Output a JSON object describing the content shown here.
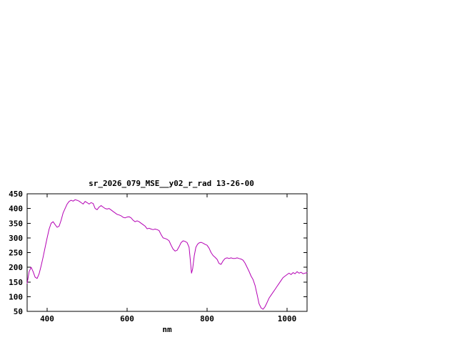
{
  "window": {
    "background": "#ffffff"
  },
  "chart_data": {
    "type": "line",
    "title": "sr_2026_079_MSE__y02_r_rad 13-26-00",
    "xlabel": "nm",
    "ylabel": "",
    "xlim": [
      350,
      1050
    ],
    "ylim": [
      50,
      450
    ],
    "x_ticks": [
      400,
      600,
      800,
      1000
    ],
    "y_ticks": [
      50,
      100,
      150,
      200,
      250,
      300,
      350,
      400,
      450
    ],
    "grid": false,
    "legend": "none",
    "axis_color": "#000000",
    "series": [
      {
        "name": "sr_2026_079_MSE__y02_r_rad",
        "color": "#b400b4",
        "x": [
          350,
          355,
          360,
          365,
          370,
          375,
          380,
          385,
          390,
          395,
          400,
          405,
          410,
          415,
          420,
          425,
          430,
          435,
          440,
          445,
          450,
          455,
          460,
          465,
          470,
          475,
          480,
          485,
          490,
          495,
          500,
          505,
          510,
          515,
          520,
          525,
          530,
          535,
          540,
          545,
          550,
          555,
          560,
          565,
          570,
          575,
          580,
          585,
          590,
          595,
          600,
          605,
          610,
          615,
          620,
          625,
          630,
          635,
          640,
          645,
          650,
          655,
          660,
          665,
          670,
          675,
          680,
          685,
          690,
          695,
          700,
          705,
          710,
          715,
          720,
          725,
          730,
          735,
          740,
          745,
          750,
          755,
          758,
          761,
          764,
          768,
          772,
          776,
          780,
          785,
          790,
          795,
          800,
          805,
          810,
          815,
          820,
          825,
          830,
          835,
          840,
          845,
          850,
          855,
          860,
          865,
          870,
          875,
          880,
          885,
          890,
          895,
          900,
          905,
          910,
          915,
          920,
          925,
          930,
          935,
          940,
          945,
          950,
          955,
          960,
          965,
          970,
          975,
          980,
          985,
          990,
          995,
          1000,
          1005,
          1010,
          1015,
          1020,
          1025,
          1030,
          1035,
          1040,
          1045,
          1050
        ],
        "y": [
          145,
          185,
          200,
          185,
          166,
          162,
          178,
          205,
          235,
          268,
          300,
          330,
          350,
          355,
          345,
          336,
          340,
          360,
          385,
          400,
          415,
          424,
          428,
          425,
          430,
          428,
          425,
          420,
          415,
          424,
          420,
          415,
          420,
          417,
          400,
          396,
          405,
          410,
          405,
          400,
          398,
          400,
          395,
          390,
          385,
          380,
          378,
          375,
          370,
          368,
          371,
          372,
          368,
          360,
          355,
          358,
          355,
          350,
          345,
          340,
          331,
          333,
          330,
          328,
          330,
          328,
          325,
          311,
          300,
          298,
          295,
          290,
          275,
          262,
          255,
          258,
          270,
          284,
          290,
          288,
          284,
          268,
          225,
          180,
          195,
          240,
          268,
          278,
          283,
          285,
          282,
          278,
          275,
          265,
          250,
          240,
          234,
          227,
          213,
          210,
          222,
          230,
          232,
          230,
          232,
          230,
          230,
          232,
          230,
          228,
          224,
          214,
          200,
          186,
          170,
          158,
          138,
          108,
          76,
          62,
          57,
          66,
          80,
          95,
          105,
          115,
          125,
          135,
          145,
          155,
          165,
          170,
          175,
          180,
          175,
          182,
          178,
          185,
          180,
          183,
          178,
          180,
          182
        ]
      }
    ]
  }
}
